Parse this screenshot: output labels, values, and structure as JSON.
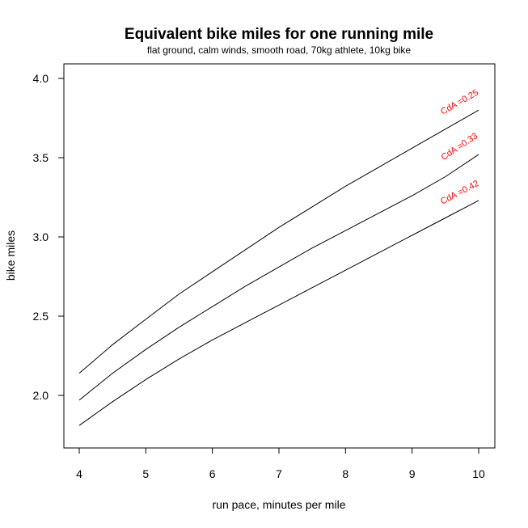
{
  "chart_data": {
    "type": "line",
    "title": "Equivalent bike miles for one running mile",
    "subtitle": "flat ground, calm winds, smooth road, 70kg athlete, 10kg bike",
    "xlabel": "run pace, minutes per mile",
    "ylabel": "bike miles",
    "xlim": [
      4,
      10
    ],
    "ylim": [
      1.8,
      4.0
    ],
    "xticks": [
      "4",
      "5",
      "6",
      "7",
      "8",
      "9",
      "10"
    ],
    "yticks": [
      "2.0",
      "2.5",
      "3.0",
      "3.5",
      "4.0"
    ],
    "grid": false,
    "legend": "none",
    "line_color": "#000000",
    "label_color": "#ff0000",
    "x": [
      4,
      4.5,
      5,
      5.5,
      6,
      6.5,
      7,
      7.5,
      8,
      8.5,
      9,
      9.5,
      10
    ],
    "series": [
      {
        "name": "CdA =0.25",
        "values": [
          2.14,
          2.32,
          2.48,
          2.64,
          2.78,
          2.92,
          3.06,
          3.19,
          3.32,
          3.44,
          3.56,
          3.68,
          3.8
        ]
      },
      {
        "name": "CdA =0.33",
        "values": [
          1.97,
          2.14,
          2.29,
          2.43,
          2.56,
          2.69,
          2.81,
          2.93,
          3.04,
          3.15,
          3.26,
          3.38,
          3.52
        ]
      },
      {
        "name": "CdA =0.42",
        "values": [
          1.81,
          1.96,
          2.1,
          2.23,
          2.35,
          2.46,
          2.57,
          2.68,
          2.79,
          2.9,
          3.01,
          3.12,
          3.23
        ]
      }
    ]
  }
}
